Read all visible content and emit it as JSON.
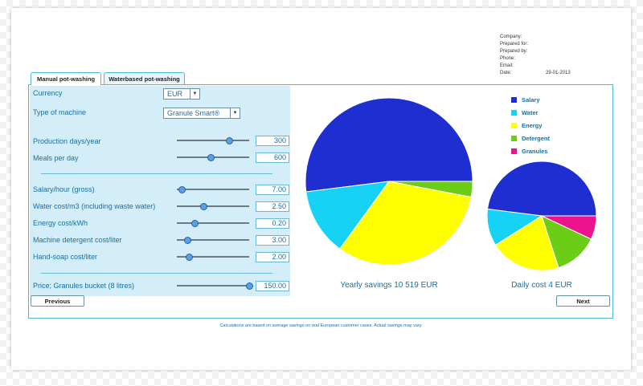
{
  "header_info": {
    "company_label": "Company:",
    "prepared_for_label": "Prepared for:",
    "prepared_by_label": "Prepared by:",
    "phone_label": "Phone:",
    "email_label": "Email:",
    "date_label": "Date:",
    "date_value": "29-01-2013"
  },
  "tabs": [
    {
      "label": "Manual pot-washing",
      "active": true
    },
    {
      "label": "Waterbased pot-washing",
      "active": false
    }
  ],
  "form": {
    "currency": {
      "label": "Currency",
      "value": "EUR"
    },
    "machine": {
      "label": "Type of machine",
      "value": "Granule Smart®"
    },
    "production_days": {
      "label": "Production days/year",
      "value": "300",
      "slider": 0.72
    },
    "meals": {
      "label": "Meals per day",
      "value": "600",
      "slider": 0.47
    },
    "salary": {
      "label": "Salary/hour (gross)",
      "value": "7.00",
      "slider": 0.07
    },
    "water": {
      "label": "Water cost/m3 (including waste water)",
      "value": "2.50",
      "slider": 0.37
    },
    "energy": {
      "label": "Energy cost/kWh",
      "value": "0.20",
      "slider": 0.24
    },
    "detergent": {
      "label": "Machine detergent cost/liter",
      "value": "3.00",
      "slider": 0.14
    },
    "handsoap": {
      "label": "Hand-soap cost/liter",
      "value": "2.00",
      "slider": 0.17
    },
    "granules_price": {
      "label": "Price; Granules bucket (8 litres)",
      "value": "150.00",
      "slider": 1.0
    }
  },
  "buttons": {
    "previous": "Previous",
    "next": "Next"
  },
  "legend": [
    {
      "name": "Salary",
      "color": "#1f2ed0"
    },
    {
      "name": "Water",
      "color": "#16d2f5"
    },
    {
      "name": "Energy",
      "color": "#ffff00"
    },
    {
      "name": "Detergent",
      "color": "#6ccd16"
    },
    {
      "name": "Granules",
      "color": "#ee138c"
    }
  ],
  "chart_data": [
    {
      "type": "pie",
      "title": "Yearly savings 10 519 EUR",
      "slices": [
        {
          "name": "Salary",
          "value": 52,
          "color": "#1f2ed0"
        },
        {
          "name": "Water",
          "value": 13,
          "color": "#16d2f5"
        },
        {
          "name": "Energy",
          "value": 32,
          "color": "#ffff00"
        },
        {
          "name": "Detergent",
          "value": 3,
          "color": "#6ccd16"
        }
      ]
    },
    {
      "type": "pie",
      "title": "Daily cost 4 EUR",
      "slices": [
        {
          "name": "Salary",
          "value": 48,
          "color": "#1f2ed0"
        },
        {
          "name": "Water",
          "value": 11,
          "color": "#16d2f5"
        },
        {
          "name": "Energy",
          "value": 21,
          "color": "#ffff00"
        },
        {
          "name": "Detergent",
          "value": 13,
          "color": "#6ccd16"
        },
        {
          "name": "Granules",
          "value": 7,
          "color": "#ee138c"
        }
      ]
    }
  ],
  "footer_note": "Calculations are based on average savings on real European customer cases. Actual savings may vary."
}
